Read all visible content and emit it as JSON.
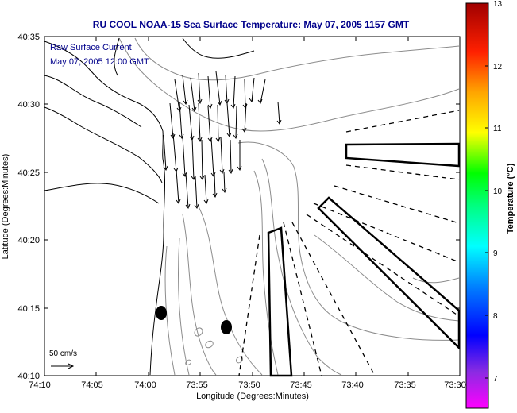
{
  "title": "RU COOL  NOAA-15  Sea Surface Temperature:  May 07, 2005 1157 GMT",
  "overlay": {
    "line1": "Raw Surface Current",
    "line2": "May 07, 2005 12:00 GMT"
  },
  "scale": {
    "label": "50 cm/s"
  },
  "axes": {
    "xlabel": "Longitude (Degrees:Minutes)",
    "ylabel": "Latitude (Degrees:Minutes)",
    "xticks": [
      "74:10",
      "74:05",
      "74:00",
      "73:55",
      "73:50",
      "73:45",
      "73:40",
      "73:35",
      "73:30"
    ],
    "yticks": [
      "40:35",
      "40:30",
      "40:25",
      "40:20",
      "40:15",
      "40:10"
    ]
  },
  "colorbar": {
    "label": "Temperature (°C)",
    "ticks": [
      "13",
      "12",
      "11",
      "10",
      "9",
      "8",
      "7"
    ],
    "stops": [
      "#ff00ff",
      "#8a2be2",
      "#0000ff",
      "#0080ff",
      "#00ffff",
      "#00ff80",
      "#00ff00",
      "#ffff00",
      "#ffa500",
      "#ff4500",
      "#ff0000",
      "#b00000"
    ]
  },
  "colors": {
    "title": "#00008b",
    "frame": "#000000",
    "contour": "#808080"
  }
}
